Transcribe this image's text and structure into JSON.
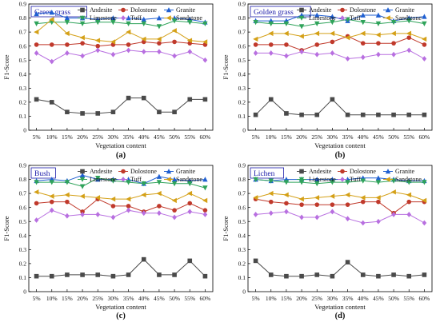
{
  "colors": {
    "Andesite": "#4a4a4a",
    "Dolostone": "#c0392b",
    "Granite": "#1f5fd1",
    "Limestone": "#2fa35a",
    "Tuff": "#b86fe0",
    "Sandstone": "#d4a017"
  },
  "chart_data": [
    {
      "type": "line",
      "panel_title": "Green grass",
      "caption": "(a)",
      "xlabel": "Vegetation content",
      "ylabel": "F1-Score",
      "categories": [
        "5%",
        "10%",
        "15%",
        "20%",
        "25%",
        "30%",
        "35%",
        "40%",
        "45%",
        "50%",
        "55%",
        "60%"
      ],
      "ylim": [
        0,
        0.9
      ],
      "yticks": [
        "0",
        "0.1",
        "0.2",
        "0.3",
        "0.4",
        "0.5",
        "0.6",
        "0.7",
        "0.8",
        "0.9"
      ],
      "legend_placement": "top-right",
      "series": [
        {
          "name": "Andesite",
          "marker": "square",
          "values": [
            0.22,
            0.2,
            0.13,
            0.12,
            0.12,
            0.13,
            0.23,
            0.23,
            0.13,
            0.13,
            0.22,
            0.22
          ]
        },
        {
          "name": "Dolostone",
          "marker": "circle",
          "values": [
            0.61,
            0.61,
            0.61,
            0.62,
            0.6,
            0.61,
            0.61,
            0.63,
            0.62,
            0.63,
            0.62,
            0.61
          ]
        },
        {
          "name": "Granite",
          "marker": "triangle-up",
          "values": [
            0.83,
            0.84,
            0.8,
            0.8,
            0.79,
            0.8,
            0.8,
            0.79,
            0.8,
            0.8,
            0.79,
            0.77
          ]
        },
        {
          "name": "Limestone",
          "marker": "triangle-down",
          "values": [
            0.76,
            0.77,
            0.77,
            0.76,
            0.77,
            0.77,
            0.76,
            0.76,
            0.74,
            0.78,
            0.77,
            0.76
          ]
        },
        {
          "name": "Tuff",
          "marker": "diamond",
          "values": [
            0.55,
            0.49,
            0.55,
            0.53,
            0.57,
            0.54,
            0.57,
            0.56,
            0.56,
            0.53,
            0.56,
            0.5
          ]
        },
        {
          "name": "Sandstone",
          "marker": "triangle-left",
          "values": [
            0.7,
            0.79,
            0.69,
            0.66,
            0.64,
            0.63,
            0.7,
            0.65,
            0.65,
            0.71,
            0.64,
            0.63
          ]
        }
      ]
    },
    {
      "type": "line",
      "panel_title": "Golden grass",
      "caption": "(b)",
      "xlabel": "Vegetation content",
      "ylabel": "F1-Score",
      "categories": [
        "5%",
        "10%",
        "15%",
        "20%",
        "25%",
        "30%",
        "35%",
        "40%",
        "45%",
        "50%",
        "55%",
        "60%"
      ],
      "ylim": [
        0,
        0.9
      ],
      "yticks": [
        "0",
        "0.1",
        "0.2",
        "0.3",
        "0.4",
        "0.5",
        "0.6",
        "0.7",
        "0.8",
        "0.9"
      ],
      "legend_placement": "top-right",
      "series": [
        {
          "name": "Andesite",
          "marker": "square",
          "values": [
            0.11,
            0.22,
            0.12,
            0.11,
            0.11,
            0.22,
            0.11,
            0.11,
            0.11,
            0.11,
            0.11,
            0.11
          ]
        },
        {
          "name": "Dolostone",
          "marker": "circle",
          "values": [
            0.61,
            0.61,
            0.61,
            0.57,
            0.61,
            0.63,
            0.67,
            0.62,
            0.62,
            0.62,
            0.66,
            0.61
          ]
        },
        {
          "name": "Granite",
          "marker": "triangle-up",
          "values": [
            0.78,
            0.78,
            0.78,
            0.82,
            0.82,
            0.81,
            0.78,
            0.82,
            0.82,
            0.78,
            0.8,
            0.81
          ]
        },
        {
          "name": "Limestone",
          "marker": "triangle-down",
          "values": [
            0.77,
            0.76,
            0.76,
            0.74,
            0.76,
            0.77,
            0.79,
            0.77,
            0.76,
            0.77,
            0.78,
            0.76
          ]
        },
        {
          "name": "Tuff",
          "marker": "diamond",
          "values": [
            0.55,
            0.55,
            0.53,
            0.56,
            0.54,
            0.55,
            0.51,
            0.52,
            0.54,
            0.54,
            0.57,
            0.51
          ]
        },
        {
          "name": "Sandstone",
          "marker": "triangle-left",
          "values": [
            0.65,
            0.69,
            0.69,
            0.67,
            0.69,
            0.69,
            0.66,
            0.69,
            0.68,
            0.69,
            0.69,
            0.65
          ]
        }
      ]
    },
    {
      "type": "line",
      "panel_title": "Bush",
      "caption": "(c)",
      "xlabel": "Vegetation content",
      "ylabel": "F1-Score",
      "categories": [
        "5%",
        "10%",
        "15%",
        "20%",
        "25%",
        "30%",
        "35%",
        "40%",
        "45%",
        "50%",
        "55%",
        "60%"
      ],
      "ylim": [
        0,
        0.9
      ],
      "yticks": [
        "0",
        "0.1",
        "0.2",
        "0.3",
        "0.4",
        "0.5",
        "0.6",
        "0.7",
        "0.8",
        "0.9"
      ],
      "legend_placement": "top-right",
      "series": [
        {
          "name": "Andesite",
          "marker": "square",
          "values": [
            0.11,
            0.11,
            0.12,
            0.12,
            0.12,
            0.11,
            0.12,
            0.23,
            0.12,
            0.12,
            0.22,
            0.11
          ]
        },
        {
          "name": "Dolostone",
          "marker": "circle",
          "values": [
            0.63,
            0.64,
            0.64,
            0.57,
            0.66,
            0.61,
            0.61,
            0.57,
            0.61,
            0.58,
            0.63,
            0.58
          ]
        },
        {
          "name": "Granite",
          "marker": "triangle-up",
          "values": [
            0.79,
            0.8,
            0.79,
            0.83,
            0.8,
            0.8,
            0.8,
            0.77,
            0.82,
            0.8,
            0.79,
            0.8
          ]
        },
        {
          "name": "Limestone",
          "marker": "triangle-down",
          "values": [
            0.78,
            0.78,
            0.78,
            0.75,
            0.81,
            0.79,
            0.78,
            0.77,
            0.78,
            0.77,
            0.77,
            0.74
          ]
        },
        {
          "name": "Tuff",
          "marker": "diamond",
          "values": [
            0.51,
            0.58,
            0.54,
            0.55,
            0.55,
            0.53,
            0.58,
            0.56,
            0.56,
            0.53,
            0.57,
            0.55
          ]
        },
        {
          "name": "Sandstone",
          "marker": "triangle-left",
          "values": [
            0.71,
            0.68,
            0.69,
            0.68,
            0.67,
            0.66,
            0.66,
            0.69,
            0.7,
            0.65,
            0.7,
            0.65
          ]
        }
      ]
    },
    {
      "type": "line",
      "panel_title": "Lichen",
      "caption": "(d)",
      "xlabel": "Vegetation content",
      "ylabel": "F1-Score",
      "categories": [
        "5%",
        "10%",
        "15%",
        "20%",
        "25%",
        "30%",
        "35%",
        "40%",
        "45%",
        "50%",
        "55%",
        "60%"
      ],
      "ylim": [
        0,
        0.9
      ],
      "yticks": [
        "0",
        "0.1",
        "0.2",
        "0.3",
        "0.4",
        "0.5",
        "0.6",
        "0.7",
        "0.8",
        "0.9"
      ],
      "legend_placement": "top-right",
      "series": [
        {
          "name": "Andesite",
          "marker": "square",
          "values": [
            0.22,
            0.12,
            0.11,
            0.11,
            0.12,
            0.11,
            0.21,
            0.12,
            0.11,
            0.12,
            0.11,
            0.12
          ]
        },
        {
          "name": "Dolostone",
          "marker": "circle",
          "values": [
            0.66,
            0.64,
            0.63,
            0.62,
            0.62,
            0.62,
            0.62,
            0.64,
            0.64,
            0.56,
            0.64,
            0.64
          ]
        },
        {
          "name": "Granite",
          "marker": "triangle-up",
          "values": [
            0.8,
            0.79,
            0.8,
            0.8,
            0.8,
            0.8,
            0.8,
            0.81,
            0.81,
            0.8,
            0.79,
            0.79
          ]
        },
        {
          "name": "Limestone",
          "marker": "triangle-down",
          "values": [
            0.8,
            0.79,
            0.78,
            0.78,
            0.77,
            0.78,
            0.78,
            0.79,
            0.78,
            0.79,
            0.78,
            0.78
          ]
        },
        {
          "name": "Tuff",
          "marker": "diamond",
          "values": [
            0.55,
            0.56,
            0.57,
            0.53,
            0.53,
            0.57,
            0.52,
            0.49,
            0.5,
            0.55,
            0.55,
            0.49
          ]
        },
        {
          "name": "Sandstone",
          "marker": "triangle-left",
          "values": [
            0.67,
            0.7,
            0.69,
            0.66,
            0.67,
            0.68,
            0.69,
            0.67,
            0.67,
            0.71,
            0.69,
            0.65
          ]
        }
      ]
    }
  ]
}
